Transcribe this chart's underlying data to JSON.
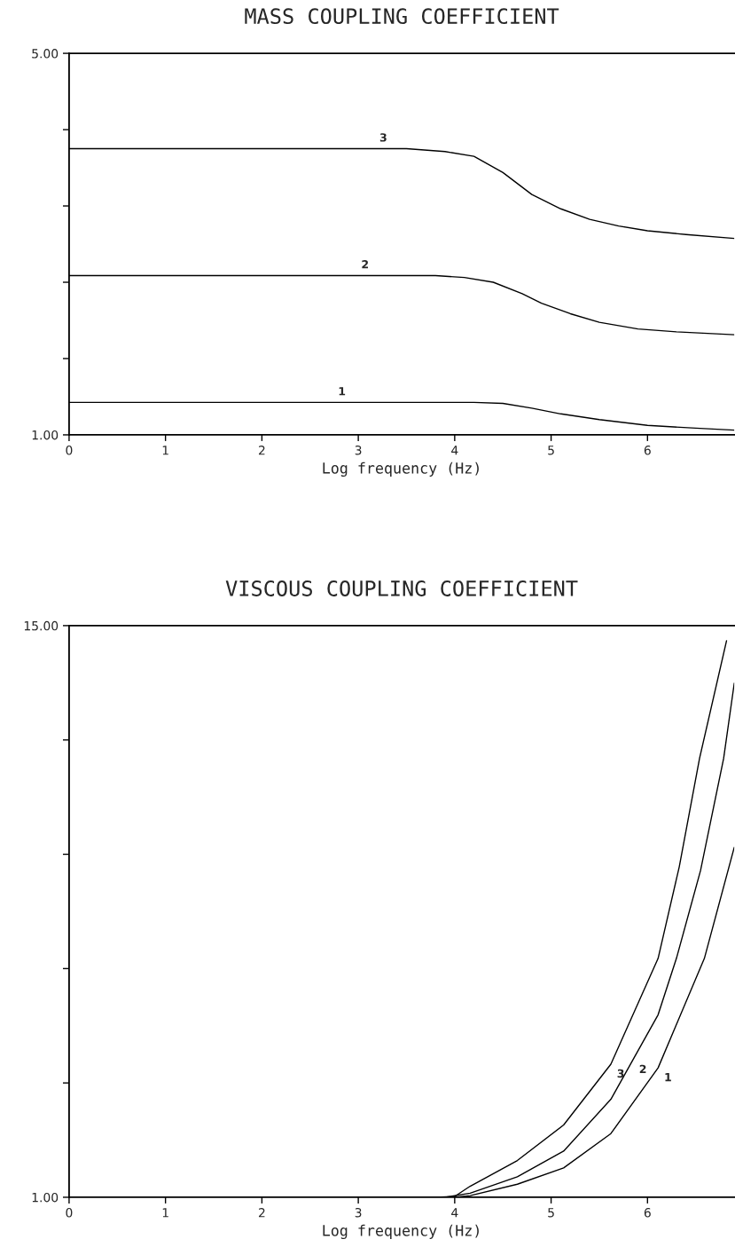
{
  "chart_data": [
    {
      "type": "line",
      "title": "MASS COUPLING COEFFICIENT",
      "xlabel": "Log frequency (Hz)",
      "xlim": [
        0,
        6.9
      ],
      "xticks": [
        0,
        1,
        2,
        3,
        4,
        5,
        6
      ],
      "ylim": [
        1,
        5
      ],
      "yticks": [
        {
          "value": 1,
          "label": "1.00"
        },
        {
          "value": 1.8,
          "label": null
        },
        {
          "value": 2.6,
          "label": null
        },
        {
          "value": 3.4,
          "label": null
        },
        {
          "value": 4.2,
          "label": null
        },
        {
          "value": 5,
          "label": "5.00"
        }
      ],
      "grid": false,
      "legend": false,
      "series": [
        {
          "color": "#000000",
          "x": [
            0,
            4.2,
            4.5,
            4.8,
            5.1,
            5.5,
            6.0,
            6.5,
            6.9
          ],
          "values": [
            1.34,
            1.34,
            1.33,
            1.28,
            1.22,
            1.16,
            1.1,
            1.07,
            1.05
          ]
        },
        {
          "color": "#000000",
          "x": [
            0,
            3.8,
            4.1,
            4.4,
            4.7,
            4.9,
            5.2,
            5.5,
            5.9,
            6.3,
            6.9
          ],
          "values": [
            2.67,
            2.67,
            2.65,
            2.6,
            2.48,
            2.38,
            2.27,
            2.18,
            2.11,
            2.08,
            2.05
          ]
        },
        {
          "color": "#000000",
          "x": [
            0,
            3.5,
            3.9,
            4.2,
            4.5,
            4.8,
            5.1,
            5.4,
            5.7,
            6.0,
            6.4,
            6.9
          ],
          "values": [
            4.0,
            4.0,
            3.97,
            3.92,
            3.75,
            3.52,
            3.37,
            3.26,
            3.19,
            3.14,
            3.1,
            3.06
          ]
        }
      ],
      "annotations": [
        {
          "text": "1",
          "x": 2.83,
          "y": 1.34
        },
        {
          "text": "2",
          "x": 3.07,
          "y": 2.67
        },
        {
          "text": "3",
          "x": 3.26,
          "y": 4.0
        }
      ]
    },
    {
      "type": "line",
      "title": "VISCOUS COUPLING COEFFICIENT",
      "xlabel": "Log frequency (Hz)",
      "xlim": [
        0,
        6.9
      ],
      "xticks": [
        0,
        1,
        2,
        3,
        4,
        5,
        6
      ],
      "ylim": [
        1,
        15
      ],
      "yticks": [
        {
          "value": 1,
          "label": "1.00"
        },
        {
          "value": 3.8,
          "label": null
        },
        {
          "value": 6.6,
          "label": null
        },
        {
          "value": 9.4,
          "label": null
        },
        {
          "value": 12.2,
          "label": null
        },
        {
          "value": 15,
          "label": "15.00"
        }
      ],
      "grid": false,
      "legend": false,
      "series": [
        {
          "color": "#000000",
          "x": [
            0,
            4.0,
            4.16,
            4.65,
            5.13,
            5.62,
            6.11,
            6.59,
            6.9
          ],
          "values": [
            1.0,
            1.0,
            1.04,
            1.32,
            1.72,
            2.56,
            4.17,
            6.85,
            9.57
          ]
        },
        {
          "color": "#000000",
          "x": [
            0,
            3.9,
            4.16,
            4.65,
            5.13,
            5.62,
            5.85,
            6.11,
            6.3,
            6.55,
            6.79,
            6.9
          ],
          "values": [
            1.0,
            1.0,
            1.1,
            1.5,
            2.13,
            3.4,
            4.37,
            5.47,
            6.85,
            9.0,
            11.75,
            13.59
          ]
        },
        {
          "color": "#000000",
          "x": [
            0,
            3.8,
            4.0,
            4.16,
            4.65,
            5.13,
            5.62,
            6.11,
            6.33,
            6.54,
            6.82
          ],
          "values": [
            1.0,
            1.0,
            1.02,
            1.27,
            1.9,
            2.77,
            4.26,
            6.85,
            9.1,
            11.75,
            14.63
          ]
        }
      ],
      "annotations": [
        {
          "text": "1",
          "x": 6.11,
          "y": 4.17
        },
        {
          "text": "2",
          "x": 5.85,
          "y": 4.37
        },
        {
          "text": "3",
          "x": 5.62,
          "y": 4.26
        }
      ]
    }
  ]
}
